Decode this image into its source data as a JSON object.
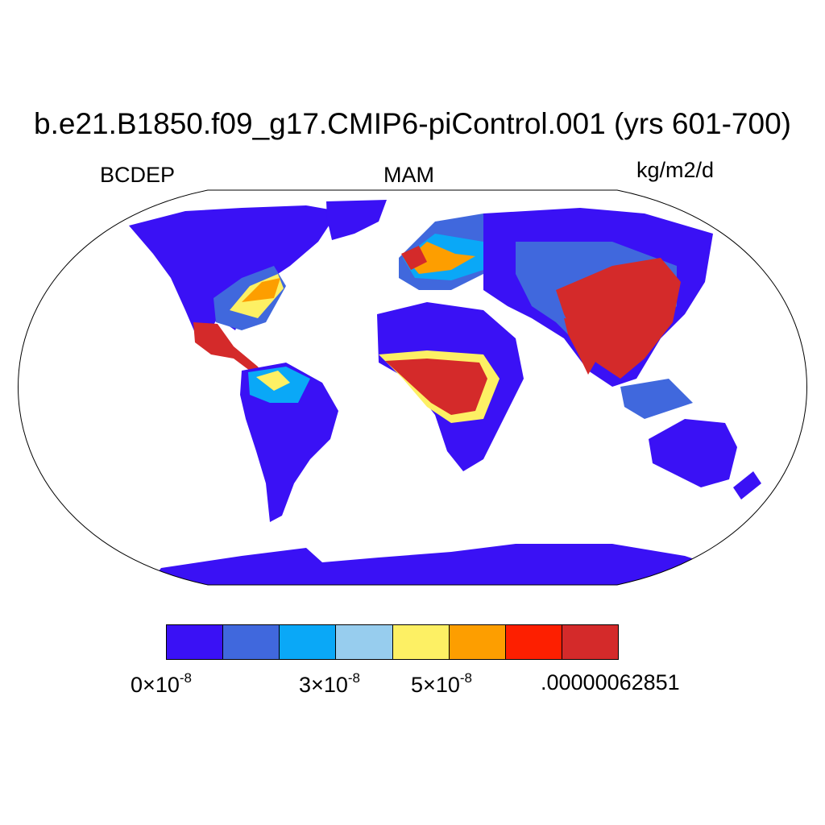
{
  "title": "b.e21.B1850.f09_g17.CMIP6-piControl.001 (yrs 601-700)",
  "variable": "BCDEP",
  "season": "MAM",
  "units": "kg/m2/d",
  "colorbar": {
    "colors": [
      "#3a11f5",
      "#4068dd",
      "#0aa8f7",
      "#97cdee",
      "#fdf064",
      "#fd9e00",
      "#fd1f00",
      "#d42a2a"
    ],
    "labels": [
      {
        "mantissa": "0",
        "times": "×",
        "base": "10",
        "exp": "-8"
      },
      {
        "mantissa": "3",
        "times": "×",
        "base": "10",
        "exp": "-8"
      },
      {
        "mantissa": "5",
        "times": "×",
        "base": "10",
        "exp": "-8"
      },
      {
        "text": ".00000062851"
      }
    ]
  },
  "legend_icons": {
    "map_frame": "robinson-ellipse-frame",
    "coastlines": "coastline-lines"
  }
}
